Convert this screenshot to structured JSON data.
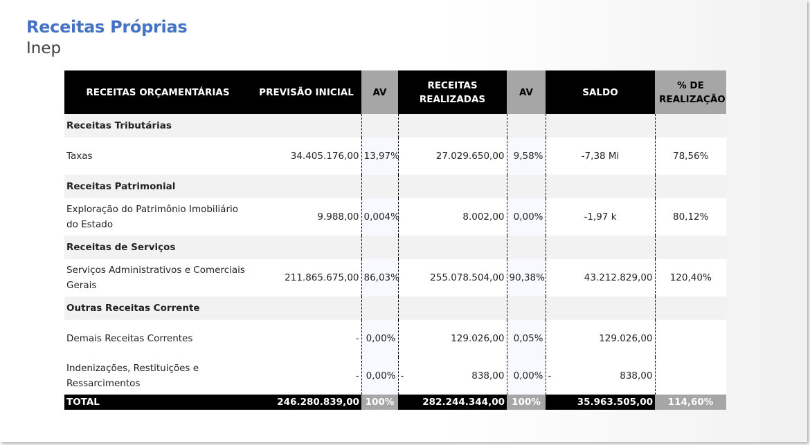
{
  "title": "Receitas Próprias",
  "subtitle": "Inep",
  "table": {
    "headers": {
      "col1": "RECEITAS ORÇAMENTÁRIAS",
      "col2": "PREVISÃO INICIAL",
      "col3": "AV",
      "col4": "RECEITAS REALIZADAS",
      "col5": "AV",
      "col6": "SALDO",
      "col7": "% DE REALIZAÇÃO"
    },
    "groups": [
      {
        "name": "Receitas Tributárias",
        "rows": [
          {
            "label": "Taxas",
            "previsao": "34.405.176,00",
            "av1": "13,97%",
            "realizadas": "27.029.650,00",
            "av2": "9,58%",
            "saldo": "-7,38 Mi",
            "realizacao": "78,56%"
          }
        ]
      },
      {
        "name": "Receitas Patrimonial",
        "rows": [
          {
            "label": "Exploração do Patrimônio Imobiliário do Estado",
            "previsao": "9.988,00",
            "av1": "0,004%",
            "realizadas": "8.002,00",
            "av2": "0,00%",
            "saldo": "-1,97 k",
            "realizacao": "80,12%"
          }
        ]
      },
      {
        "name": "Receitas de Serviços",
        "rows": [
          {
            "label": "Serviços Administrativos e Comerciais Gerais",
            "previsao": "211.865.675,00",
            "av1": "86,03%",
            "realizadas": "255.078.504,00",
            "av2": "90,38%",
            "saldo": "43.212.829,00",
            "realizacao": "120,40%"
          }
        ]
      },
      {
        "name": "Outras Receitas Corrente",
        "rows": [
          {
            "label": "Demais Receitas Correntes",
            "previsao": "-",
            "av1": "0,00%",
            "realizadas": "129.026,00",
            "av2": "0,05%",
            "saldo": "129.026,00",
            "realizacao": ""
          },
          {
            "label": "Indenizações, Restituições e Ressarcimentos",
            "previsao": "-",
            "av1": "0,00%",
            "realizadas_lead": "-",
            "realizadas": "838,00",
            "av2": "0,00%",
            "saldo_lead": "-",
            "saldo": "838,00",
            "realizacao": ""
          }
        ]
      }
    ],
    "total": {
      "label": "TOTAL",
      "previsao": "246.280.839,00",
      "av1": "100%",
      "realizadas": "282.244.344,00",
      "av2": "100%",
      "saldo": "35.963.505,00",
      "realizacao": "114,60%"
    }
  }
}
